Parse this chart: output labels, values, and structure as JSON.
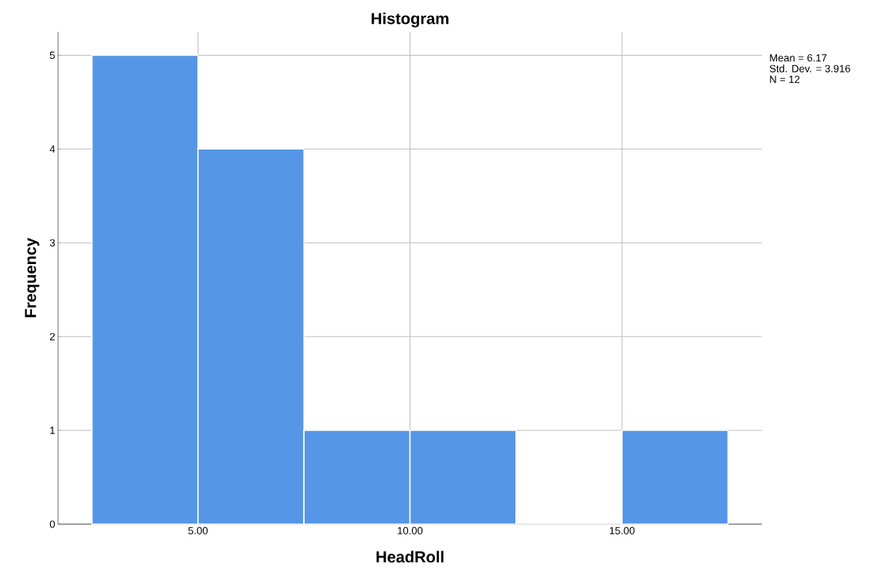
{
  "chart_data": {
    "type": "histogram",
    "title": "Histogram",
    "xlabel": "HeadRoll",
    "ylabel": "Frequency",
    "bins": [
      2.5,
      5,
      7.5,
      10,
      12.5,
      15,
      17.5
    ],
    "values": [
      5,
      4,
      1,
      1,
      0,
      1
    ],
    "color": "#5596e6",
    "xlim": [
      1.7,
      18.3
    ],
    "ylim": [
      0,
      5.25
    ],
    "xticks": [
      {
        "value": 5,
        "label": "5.00"
      },
      {
        "value": 10,
        "label": "10.00"
      },
      {
        "value": 15,
        "label": "15.00"
      }
    ],
    "yticks": [
      0,
      1,
      2,
      3,
      4,
      5
    ],
    "grid": true,
    "annotations": [
      "Mean = 6.17",
      "Std. Dev. = 3.916",
      "N = 12"
    ]
  }
}
